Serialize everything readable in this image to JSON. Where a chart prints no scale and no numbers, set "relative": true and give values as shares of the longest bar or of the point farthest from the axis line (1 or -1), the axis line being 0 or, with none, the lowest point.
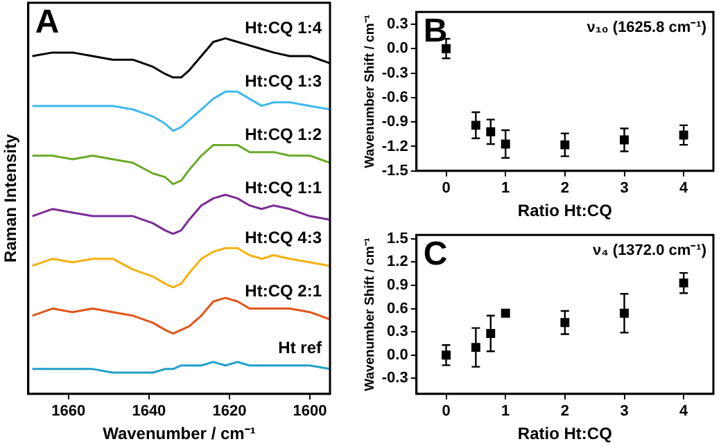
{
  "chart_data": [
    {
      "type": "line",
      "title": "A",
      "xlabel": "Wavenumber / cm⁻¹",
      "ylabel": "Raman Intensity",
      "relative": true,
      "tick_labels": "x",
      "marker": "none",
      "line_style": "solid",
      "xlim": [
        1670,
        1595
      ],
      "xticks": [
        1660,
        1640,
        1620,
        1600
      ],
      "x": [
        1669,
        1664,
        1659,
        1654,
        1649,
        1644,
        1639,
        1636,
        1634,
        1632,
        1630,
        1627,
        1624,
        1621,
        1618,
        1615,
        1612,
        1609,
        1605,
        1600,
        1595
      ],
      "series": [
        {
          "name": "Ht:CQ 1:4",
          "color": "#000000",
          "values": [
            0.95,
            0.96,
            0.96,
            0.95,
            0.94,
            0.94,
            0.92,
            0.9,
            0.89,
            0.89,
            0.91,
            0.95,
            0.99,
            1.0,
            0.99,
            0.98,
            0.97,
            0.96,
            0.95,
            0.95,
            0.93
          ]
        },
        {
          "name": "Ht:CQ 1:3",
          "color": "#3fb8ef",
          "values": [
            0.81,
            0.81,
            0.81,
            0.81,
            0.81,
            0.8,
            0.78,
            0.76,
            0.74,
            0.75,
            0.77,
            0.8,
            0.83,
            0.85,
            0.85,
            0.83,
            0.81,
            0.82,
            0.82,
            0.81,
            0.8
          ]
        },
        {
          "name": "Ht:CQ 1:2",
          "color": "#6aaa2a",
          "values": [
            0.67,
            0.67,
            0.66,
            0.67,
            0.66,
            0.65,
            0.62,
            0.61,
            0.59,
            0.6,
            0.63,
            0.67,
            0.7,
            0.7,
            0.7,
            0.68,
            0.68,
            0.68,
            0.67,
            0.67,
            0.65
          ]
        },
        {
          "name": "Ht:CQ 1:1",
          "color": "#7b2a96",
          "values": [
            0.5,
            0.52,
            0.51,
            0.5,
            0.5,
            0.5,
            0.48,
            0.46,
            0.45,
            0.46,
            0.49,
            0.53,
            0.55,
            0.56,
            0.55,
            0.53,
            0.52,
            0.53,
            0.52,
            0.5,
            0.49
          ]
        },
        {
          "name": "Ht:CQ 4:3",
          "color": "#f5b010",
          "values": [
            0.36,
            0.38,
            0.37,
            0.38,
            0.38,
            0.35,
            0.33,
            0.31,
            0.3,
            0.31,
            0.34,
            0.38,
            0.4,
            0.41,
            0.41,
            0.39,
            0.38,
            0.39,
            0.38,
            0.37,
            0.36
          ]
        },
        {
          "name": "Ht:CQ 2:1",
          "color": "#e2531a",
          "values": [
            0.22,
            0.24,
            0.23,
            0.24,
            0.23,
            0.22,
            0.2,
            0.18,
            0.17,
            0.18,
            0.19,
            0.22,
            0.26,
            0.27,
            0.26,
            0.24,
            0.24,
            0.24,
            0.24,
            0.23,
            0.21
          ]
        },
        {
          "name": "Ht ref",
          "color": "#1ea0c8",
          "values": [
            0.07,
            0.07,
            0.07,
            0.07,
            0.06,
            0.06,
            0.06,
            0.07,
            0.07,
            0.08,
            0.08,
            0.08,
            0.09,
            0.08,
            0.09,
            0.08,
            0.08,
            0.08,
            0.08,
            0.08,
            0.07
          ]
        }
      ]
    },
    {
      "type": "scatter",
      "title": "B",
      "xlabel": "Ratio Ht:CQ",
      "ylabel": "Wavenumber Shift / cm⁻¹",
      "annotations": [
        "ν₁₀ (1625.8 cm⁻¹)"
      ],
      "marker": "square",
      "color": "#000000",
      "xlim": [
        -0.5,
        4.5
      ],
      "xticks": [
        0,
        1,
        2,
        3,
        4
      ],
      "ylim": [
        -1.5,
        0.45
      ],
      "yticks": [
        -1.5,
        -1.2,
        -0.9,
        -0.6,
        -0.3,
        {
          "value": 0,
          "label": "0.0"
        },
        0.3
      ],
      "x": [
        0,
        0.5,
        0.75,
        1,
        2,
        3,
        4
      ],
      "values": [
        0,
        -0.94,
        -1.02,
        -1.17,
        -1.18,
        -1.12,
        -1.06
      ],
      "errors": [
        0.12,
        0.16,
        0.15,
        0.17,
        0.14,
        0.14,
        0.12
      ]
    },
    {
      "type": "scatter",
      "title": "C",
      "xlabel": "Ratio Ht:CQ",
      "ylabel": "Wavenumber Shift / cm⁻¹",
      "annotations": [
        "ν₄ (1372.0 cm⁻¹)"
      ],
      "marker": "square",
      "color": "#000000",
      "xlim": [
        -0.5,
        4.5
      ],
      "xticks": [
        0,
        1,
        2,
        3,
        4
      ],
      "ylim": [
        -0.5,
        1.55
      ],
      "yticks": [
        -0.3,
        {
          "value": 0,
          "label": "0.0"
        },
        0.3,
        0.6,
        0.9,
        1.2,
        1.5
      ],
      "x": [
        0,
        0.5,
        0.75,
        1,
        2,
        3,
        4
      ],
      "values": [
        0,
        0.1,
        0.28,
        0.54,
        0.42,
        0.54,
        0.93
      ],
      "errors": [
        0.13,
        0.25,
        0.23,
        0.03,
        0.15,
        0.25,
        0.13
      ]
    }
  ]
}
